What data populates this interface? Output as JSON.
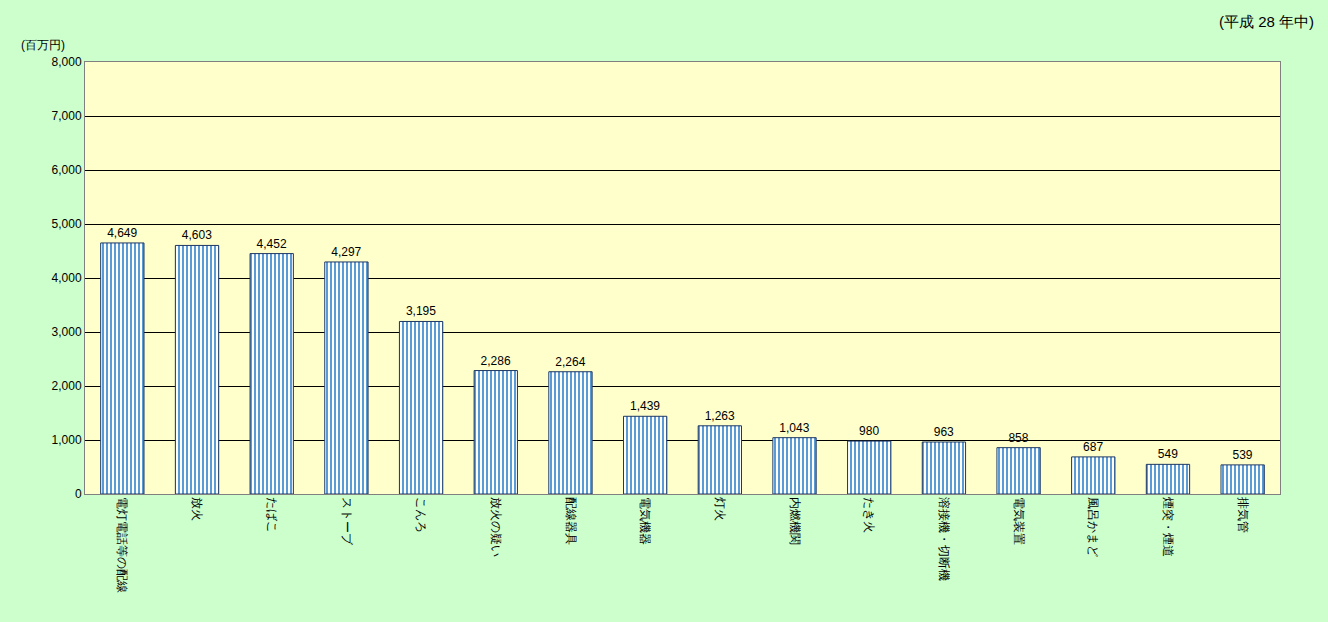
{
  "chart_data": {
    "type": "bar",
    "subtitle": "(平成 28 年中)",
    "ylabel": "(百万円)",
    "categories": [
      "電灯電話等の配線",
      "放火",
      "たばこ",
      "ストーブ",
      "こんろ",
      "放火の疑い",
      "配線器具",
      "電気機器",
      "灯火",
      "内燃機関",
      "たき火",
      "溶接機・切断機",
      "電気装置",
      "風呂かまど",
      "煙突・煙道",
      "排気管"
    ],
    "values": [
      4649,
      4603,
      4452,
      4297,
      3195,
      2286,
      2264,
      1439,
      1263,
      1043,
      980,
      963,
      858,
      687,
      549,
      539
    ],
    "value_labels": [
      "4,649",
      "4,603",
      "4,452",
      "4,297",
      "3,195",
      "2,286",
      "2,264",
      "1,439",
      "1,263",
      "1,043",
      "980",
      "963",
      "858",
      "687",
      "549",
      "539"
    ],
    "data_labels": true,
    "color": "#5b9bd5",
    "ylim": [
      0,
      8000
    ],
    "yticks": [
      0,
      {
        "value": 1000,
        "label": "1,000"
      },
      {
        "value": 2000,
        "label": "2,000"
      },
      {
        "value": 3000,
        "label": "3,000"
      },
      {
        "value": 4000,
        "label": "4,000"
      },
      {
        "value": 5000,
        "label": "5,000"
      },
      {
        "value": 6000,
        "label": "6,000"
      },
      {
        "value": 7000,
        "label": "7,000"
      },
      {
        "value": 8000,
        "label": "8,000"
      }
    ],
    "grid": true
  }
}
